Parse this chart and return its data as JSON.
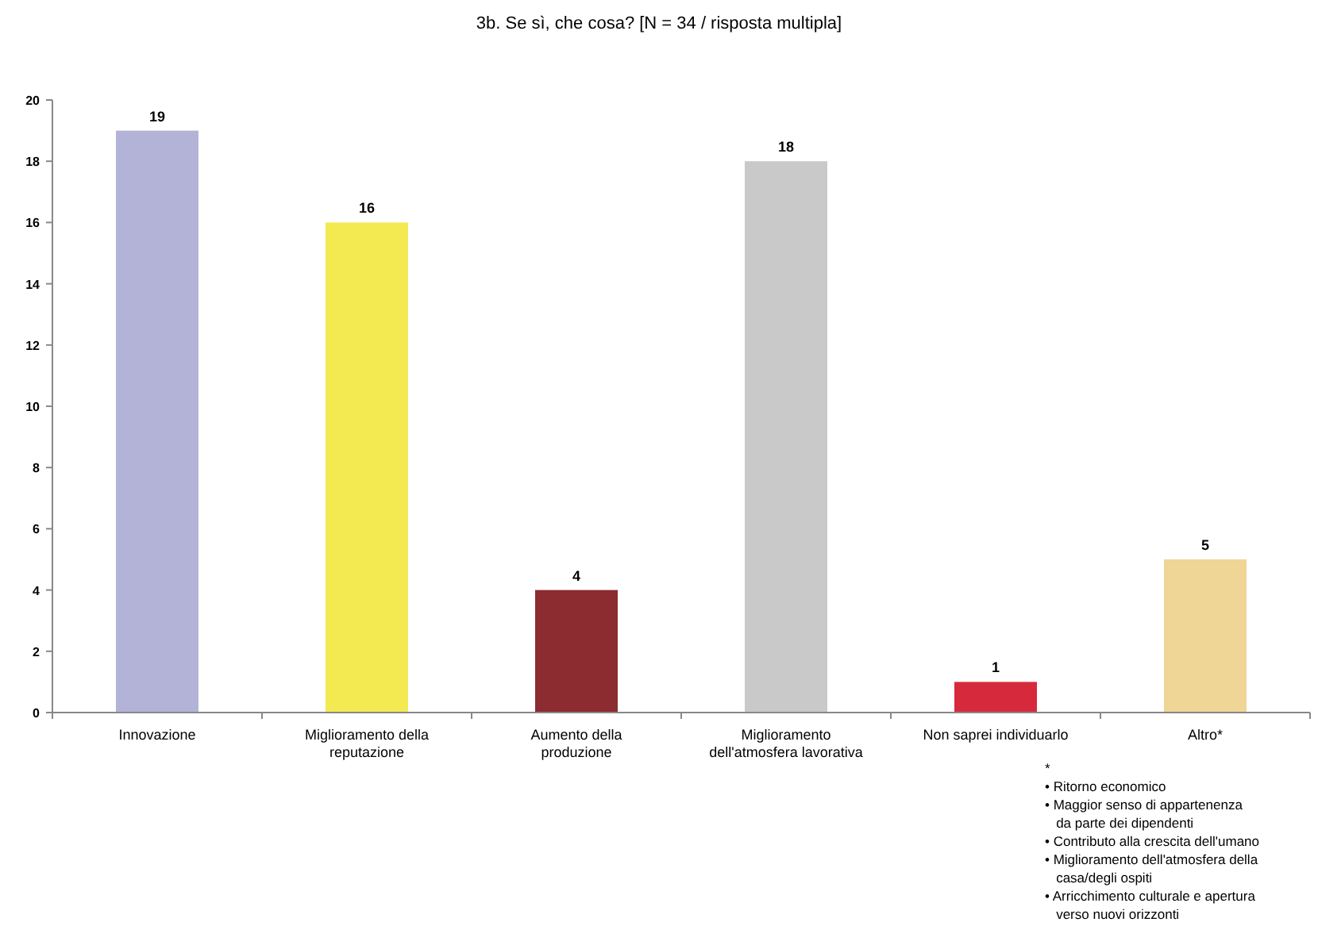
{
  "chart_data": {
    "type": "bar",
    "title": "3b. Se sì, che cosa? [N = 34 / risposta multipla]",
    "categories": [
      "Innovazione",
      "Miglioramento della\nreputazione",
      "Aumento della\nproduzione",
      "Miglioramento\ndell'atmosfera lavorativa",
      "Non saprei individuarlo",
      "Altro*"
    ],
    "values": [
      19,
      16,
      4,
      18,
      1,
      5
    ],
    "colors": [
      "#b3b3d8",
      "#f3ea52",
      "#8c2b30",
      "#c9c9c9",
      "#d62a3c",
      "#efd596"
    ],
    "data_labels": true,
    "ylim": [
      0,
      20
    ],
    "yticks": [
      0,
      2,
      4,
      6,
      8,
      10,
      12,
      14,
      16,
      18,
      20
    ],
    "grid": false,
    "annotations": [
      "*\n• Ritorno economico\n• Maggior senso di appartenenza\n   da parte dei dipendenti\n• Contributo alla crescita dell'umano\n• Miglioramento dell'atmosfera della\n   casa/degli ospiti\n• Arricchimento culturale e apertura\n   verso nuovi orizzonti"
    ]
  }
}
